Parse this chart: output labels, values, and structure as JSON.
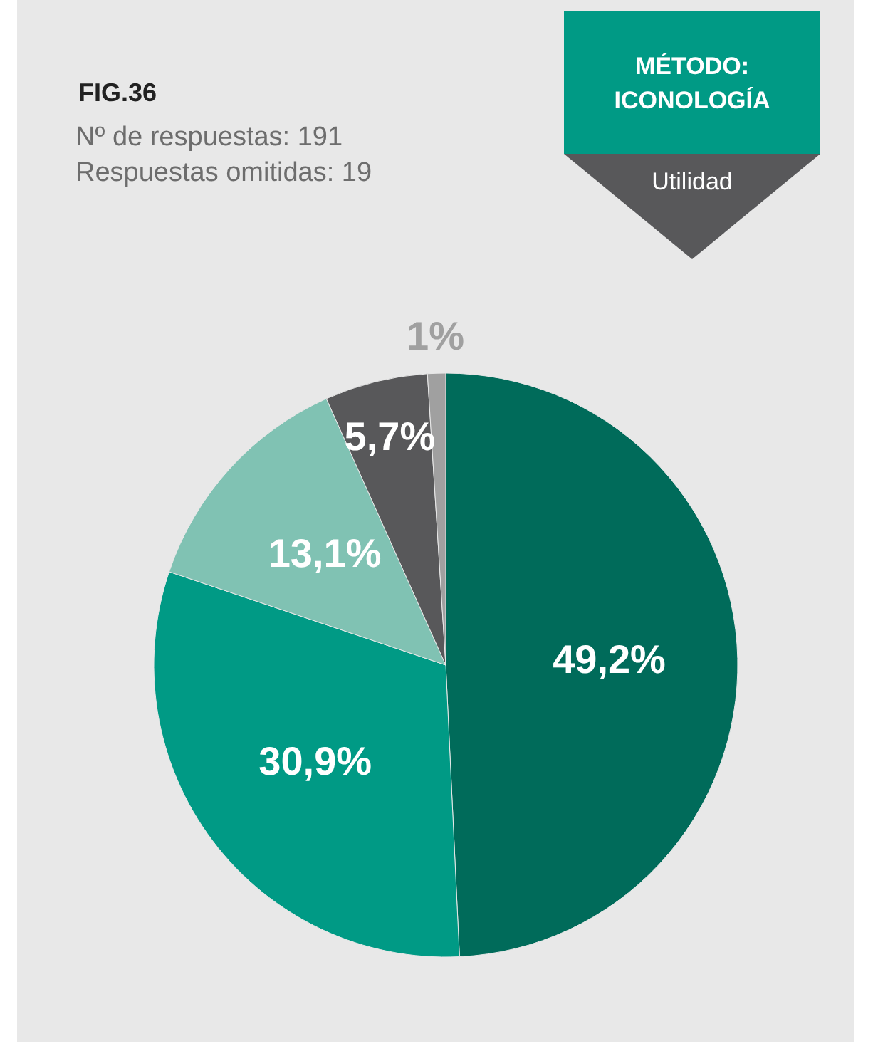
{
  "chart_data": {
    "type": "pie",
    "title": "FIG.36",
    "subtitle": [
      "Nº de respuestas: 191",
      "Respuestas omitidas: 19"
    ],
    "annotations": [
      "MÉTODO:",
      "ICONOLOGÍA",
      "Utilidad"
    ],
    "categories": [
      null,
      null,
      null,
      null,
      null
    ],
    "values": [
      49.2,
      30.9,
      13.1,
      5.7,
      1
    ],
    "colors": [
      "#006b5a",
      "#009a85",
      "#80c2b3",
      "#58585a",
      "#a0a0a0"
    ],
    "value_labels": [
      "49,2%",
      "30,9%",
      "13,1%",
      "5,7%",
      "1%"
    ],
    "legend": false
  }
}
